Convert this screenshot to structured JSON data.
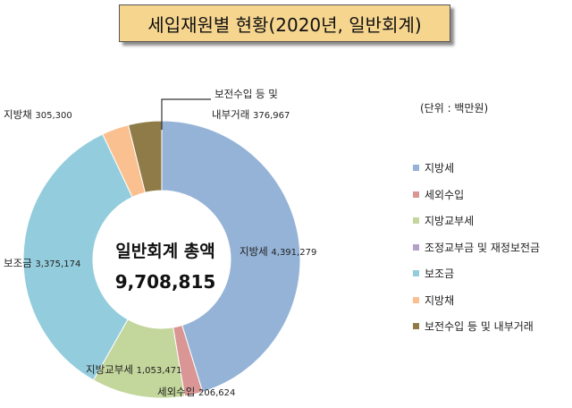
{
  "title": "세입재원별 현황(2020년, 일반회계)",
  "unit": "(단위 : 백만원)",
  "center": {
    "label": "일반회계 총액",
    "total": "9,708,815"
  },
  "chart_data": {
    "type": "pie",
    "variant": "donut",
    "title": "세입재원별 현황(2020년, 일반회계)",
    "unit": "백만원",
    "total": 9708815,
    "legend_position": "right",
    "series": [
      {
        "name": "지방세",
        "value": 4391279,
        "label": "지방세",
        "value_label": "4,391,279",
        "color": "#95b3d7"
      },
      {
        "name": "세외수입",
        "value": 206624,
        "label": "세외수입",
        "value_label": "206,624",
        "color": "#d99694"
      },
      {
        "name": "지방교부세",
        "value": 1053471,
        "label": "지방교부세",
        "value_label": "1,053,471",
        "color": "#c3d69b"
      },
      {
        "name": "조정교부금 및 재정보전금",
        "value": 0,
        "label": "",
        "value_label": "",
        "color": "#b3a2c7"
      },
      {
        "name": "보조금",
        "value": 3375174,
        "label": "보조금",
        "value_label": "3,375,174",
        "color": "#93cddd"
      },
      {
        "name": "지방채",
        "value": 305300,
        "label": "지방채",
        "value_label": "305,300",
        "color": "#fac090"
      },
      {
        "name": "보전수입 등 및 내부거래",
        "value": 376967,
        "label": "보전수입 등 및",
        "label2": "내부거래",
        "value_label": "376,967",
        "color": "#8e7b47"
      }
    ]
  }
}
